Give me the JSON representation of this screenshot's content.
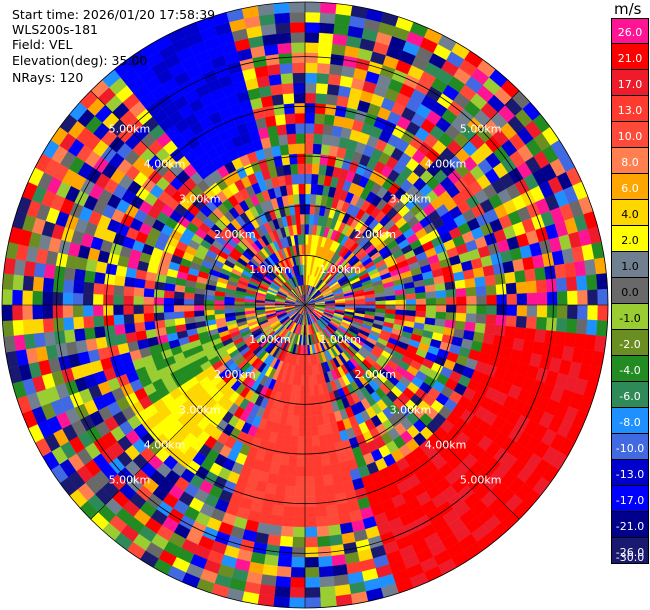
{
  "info": {
    "start_time": "Start time: 2026/01/20 17:58:39",
    "instrument": "WLS200s-181",
    "field": "Field: VEL",
    "elevation": "Elevation(deg): 35.00",
    "nrays": "NRays: 120"
  },
  "chart_data": {
    "type": "heatmap",
    "projection": "polar",
    "field": "VEL",
    "unit": "m/s",
    "nrays": 120,
    "elevation_deg": 35.0,
    "ring_labels": [
      "1.00km",
      "2.00km",
      "3.00km",
      "4.00km",
      "5.00km"
    ],
    "ring_radii_km": [
      1,
      2,
      3,
      4,
      5
    ],
    "max_range_km": 6.1,
    "range_gates": 30,
    "colorbar": {
      "levels": [
        26.0,
        21.0,
        17.0,
        13.0,
        10.0,
        8.0,
        6.0,
        4.0,
        2.0,
        1.0,
        0.0,
        -1.0,
        -2.0,
        -4.0,
        -6.0,
        -8.0,
        -10.0,
        -13.0,
        -17.0,
        -21.0,
        -26.0,
        -30.0
      ],
      "labels": [
        "26.0",
        "21.0",
        "17.0",
        "13.0",
        "10.0",
        "8.0",
        "6.0",
        "4.0",
        "2.0",
        "1.0",
        "0.0",
        "-1.0",
        "-2.0",
        "-4.0",
        "-6.0",
        "-8.0",
        "-10.0",
        "-13.0",
        "-17.0",
        "-21.0",
        "-26.0",
        "-30.0"
      ],
      "colors": [
        "#ff1493",
        "#ff0000",
        "#ee1c2a",
        "#ff3b30",
        "#ff4a3a",
        "#ff7f50",
        "#ffa500",
        "#ffd700",
        "#ffff00",
        "#708090",
        "#696969",
        "#9acd32",
        "#6b8e23",
        "#228b22",
        "#2e8b57",
        "#1e90ff",
        "#4169e1",
        "#0000cd",
        "#0000ff",
        "#00008b",
        "#191970"
      ]
    }
  }
}
